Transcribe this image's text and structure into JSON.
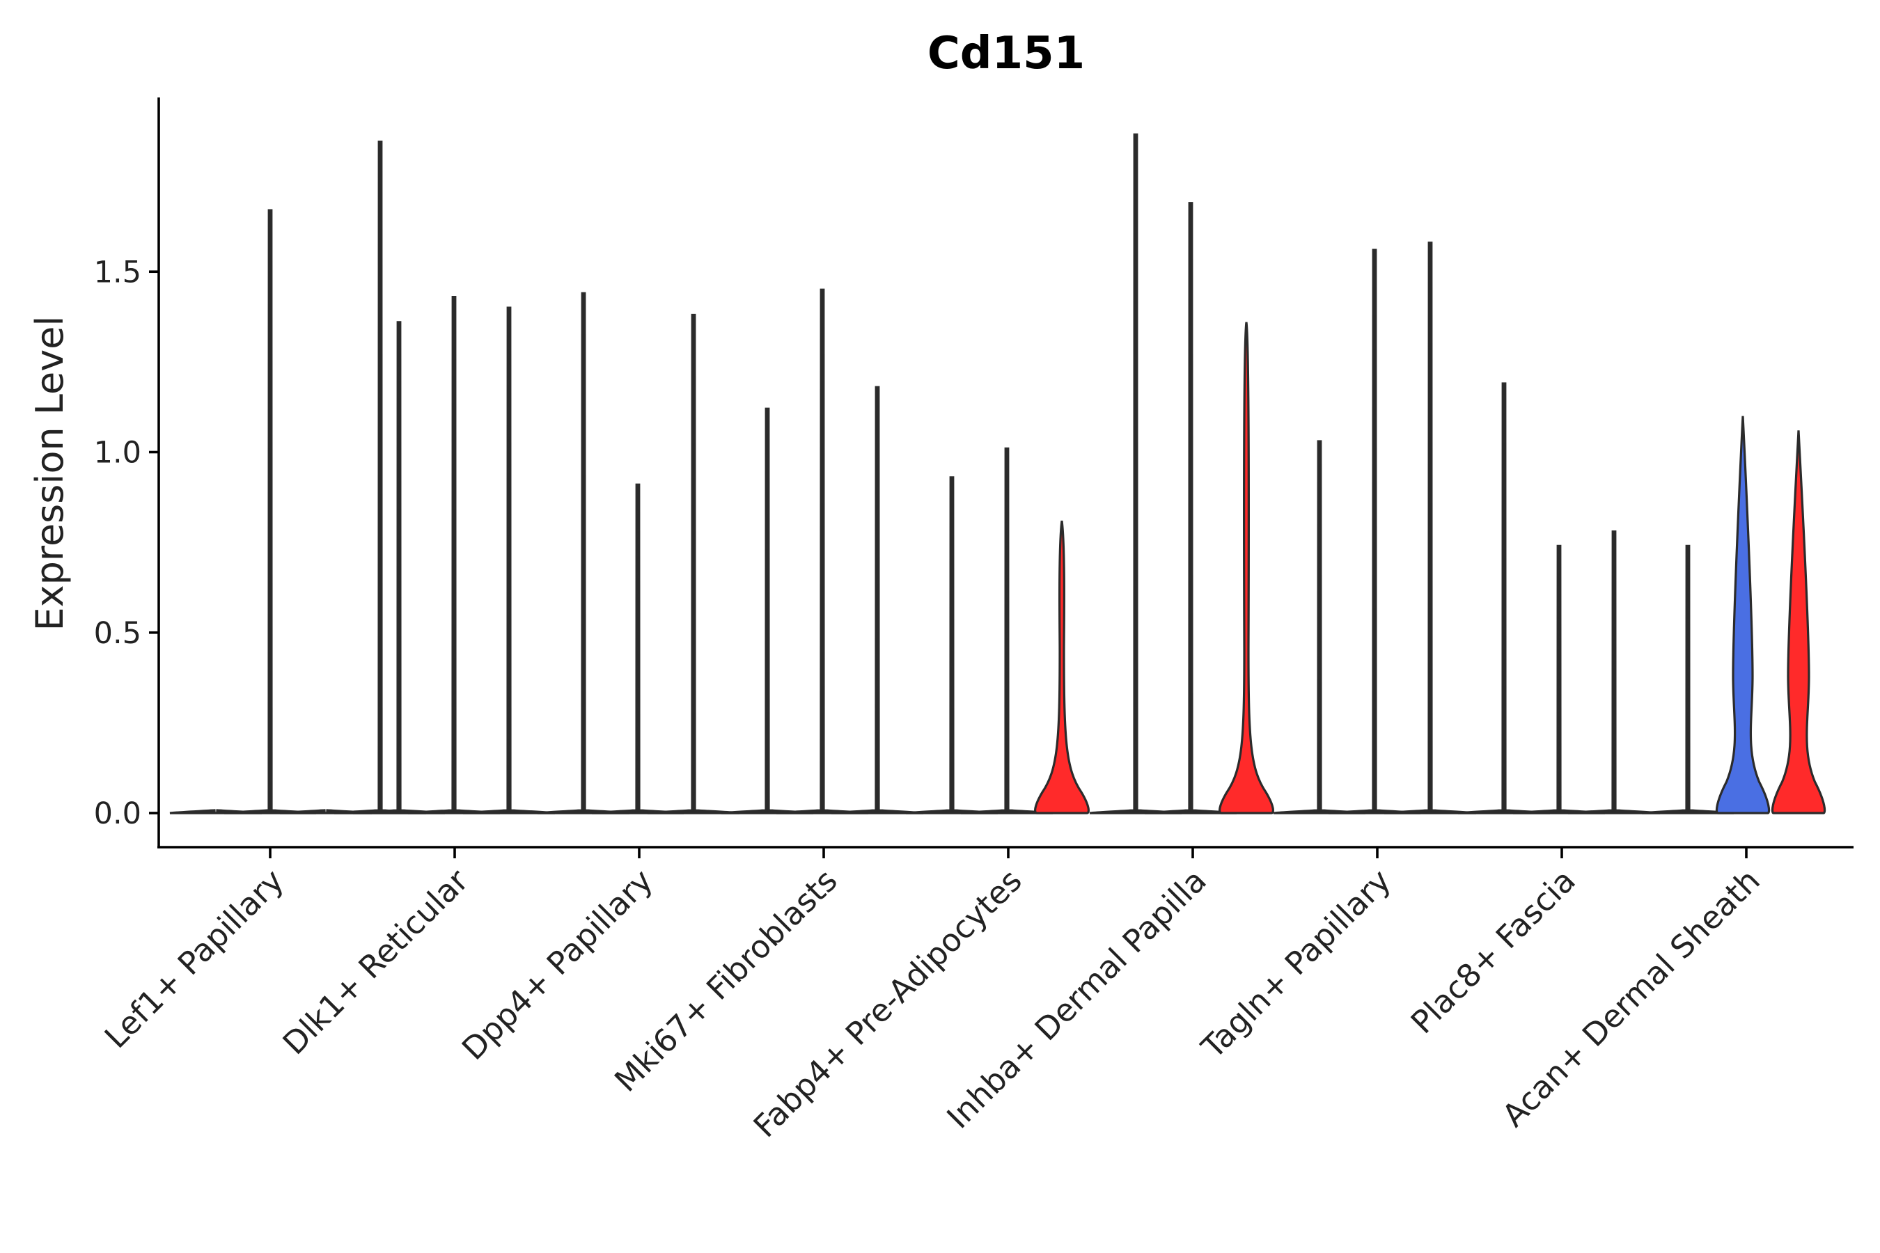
{
  "chart_data": {
    "type": "violin",
    "title": "Cd151",
    "xlabel": "",
    "ylabel": "Expression Level",
    "ylim": [
      -0.1,
      1.98
    ],
    "yticks": [
      0.0,
      0.5,
      1.0,
      1.5
    ],
    "ytick_labels": [
      "0.0",
      "0.5",
      "1.0",
      "1.5"
    ],
    "grid": false,
    "colors": {
      "blue": "#4a6fe3",
      "red": "#ff2a2a",
      "outline": "#2b2b2b"
    },
    "categories": [
      "Lef1+ Papillary",
      "Dlk1+ Reticular",
      "Dpp4+ Papillary",
      "Mki67+ Fibroblasts",
      "Fabp4+ Pre-Adipocytes",
      "Inhba+ Dermal Papilla",
      "Tagln+ Papillary",
      "Plac8+ Fascia",
      "Acan+ Dermal Sheath"
    ],
    "groups": [
      {
        "category": "Lef1+ Papillary",
        "violins": [
          {
            "max": 0.0,
            "fill": "none"
          },
          {
            "max": 1.67,
            "fill": "none"
          },
          {
            "max": 0.0,
            "fill": "none"
          },
          {
            "max": 1.86,
            "fill": "none"
          }
        ]
      },
      {
        "category": "Dlk1+ Reticular",
        "violins": [
          {
            "max": 1.36,
            "fill": "none"
          },
          {
            "max": 1.43,
            "fill": "none"
          },
          {
            "max": 1.4,
            "fill": "none"
          }
        ]
      },
      {
        "category": "Dpp4+ Papillary",
        "violins": [
          {
            "max": 1.44,
            "fill": "none"
          },
          {
            "max": 0.91,
            "fill": "none"
          },
          {
            "max": 1.38,
            "fill": "none"
          }
        ]
      },
      {
        "category": "Mki67+ Fibroblasts",
        "violins": [
          {
            "max": 1.12,
            "fill": "none"
          },
          {
            "max": 1.45,
            "fill": "none"
          },
          {
            "max": 1.18,
            "fill": "none"
          }
        ]
      },
      {
        "category": "Fabp4+ Pre-Adipocytes",
        "violins": [
          {
            "max": 0.93,
            "fill": "none"
          },
          {
            "max": 1.01,
            "fill": "none"
          },
          {
            "max": 0.81,
            "fill": "red"
          }
        ]
      },
      {
        "category": "Inhba+ Dermal Papilla",
        "violins": [
          {
            "max": 1.88,
            "fill": "none"
          },
          {
            "max": 1.69,
            "fill": "none"
          },
          {
            "max": 1.36,
            "fill": "red"
          }
        ]
      },
      {
        "category": "Tagln+ Papillary",
        "violins": [
          {
            "max": 1.03,
            "fill": "none"
          },
          {
            "max": 1.56,
            "fill": "none"
          },
          {
            "max": 1.58,
            "fill": "none"
          }
        ]
      },
      {
        "category": "Plac8+ Fascia",
        "violins": [
          {
            "max": 1.19,
            "fill": "none"
          },
          {
            "max": 0.74,
            "fill": "none"
          },
          {
            "max": 0.78,
            "fill": "none"
          }
        ]
      },
      {
        "category": "Acan+ Dermal Sheath",
        "violins": [
          {
            "max": 0.74,
            "fill": "none"
          },
          {
            "max": 1.1,
            "fill": "blue"
          },
          {
            "max": 1.06,
            "fill": "red"
          }
        ]
      }
    ]
  }
}
